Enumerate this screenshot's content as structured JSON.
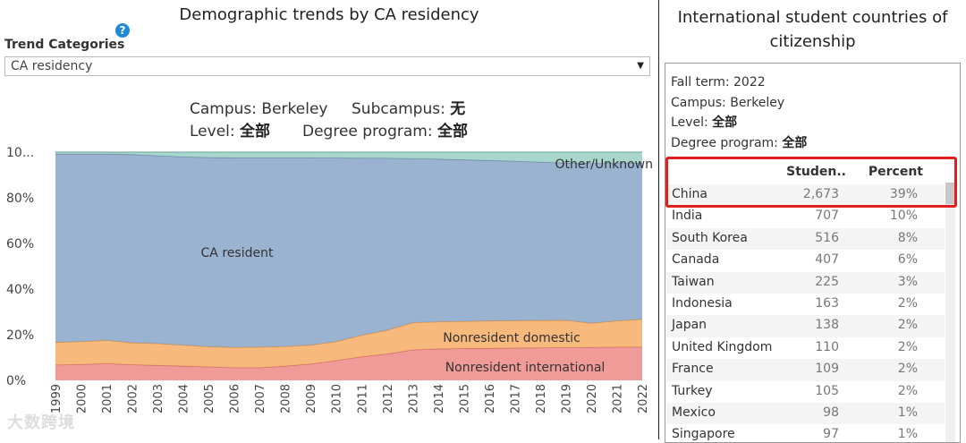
{
  "left": {
    "title": "Demographic trends by CA residency",
    "help_glyph": "?",
    "trend_label": "Trend Categories",
    "dropdown_value": "CA residency",
    "filters": {
      "campus_key": "Campus:",
      "campus_val": "Berkeley",
      "subcampus_key": "Subcampus:",
      "subcampus_val": "无",
      "level_key": "Level:",
      "level_val": "全部",
      "degree_key": "Degree program:",
      "degree_val": "全部"
    }
  },
  "watermark": "大数跨境",
  "chart_data": {
    "type": "area",
    "stacked": true,
    "title": "",
    "xlabel": "",
    "ylabel": "",
    "x": [
      "1999",
      "2000",
      "2001",
      "2002",
      "2003",
      "2004",
      "2005",
      "2006",
      "2007",
      "2008",
      "2009",
      "2010",
      "2011",
      "2012",
      "2013",
      "2014",
      "2015",
      "2016",
      "2017",
      "2018",
      "2019",
      "2020",
      "2021",
      "2022"
    ],
    "ylim": [
      0,
      100
    ],
    "yticks": [
      "0%",
      "20%",
      "40%",
      "60%",
      "80%",
      "10..."
    ],
    "grid": false,
    "series": [
      {
        "name": "Nonresident international",
        "color": "#f0908e",
        "values": [
          6.8,
          7.0,
          7.4,
          6.9,
          6.6,
          6.3,
          6.0,
          5.6,
          5.6,
          6.3,
          7.2,
          8.7,
          10.4,
          11.6,
          13.4,
          13.8,
          14.0,
          14.1,
          14.2,
          14.3,
          14.4,
          14.5,
          14.6,
          14.6
        ]
      },
      {
        "name": "Nonresident domestic",
        "color": "#f7b26e",
        "values": [
          9.9,
          10.0,
          10.2,
          9.6,
          9.6,
          9.2,
          8.8,
          8.9,
          9.0,
          8.6,
          8.3,
          8.3,
          9.4,
          10.4,
          11.9,
          11.9,
          11.9,
          12.0,
          12.0,
          12.0,
          12.0,
          10.6,
          11.5,
          12.2
        ]
      },
      {
        "name": "CA resident",
        "color": "#8fabcb",
        "values": [
          82.5,
          82.2,
          81.6,
          82.5,
          82.3,
          82.5,
          82.9,
          83.1,
          83.0,
          82.7,
          82.1,
          80.5,
          77.6,
          75.4,
          71.9,
          71.3,
          70.8,
          70.3,
          69.9,
          69.4,
          68.9,
          70.0,
          69.1,
          68.4
        ]
      },
      {
        "name": "Other/Unknown",
        "color": "#9fd3c8",
        "values": [
          0.8,
          0.8,
          0.8,
          1.0,
          1.5,
          2.0,
          2.3,
          2.4,
          2.4,
          2.4,
          2.4,
          2.5,
          2.6,
          2.6,
          2.8,
          3.0,
          3.3,
          3.6,
          3.9,
          4.3,
          4.7,
          4.9,
          4.8,
          4.8
        ]
      }
    ]
  },
  "right": {
    "title_line1": "International student countries of",
    "title_line2": "citizenship",
    "meta": {
      "fall_term_key": "Fall term:",
      "fall_term_val": "2022",
      "campus_key": "Campus:",
      "campus_val": "Berkeley",
      "level_key": "Level:",
      "level_val": "全部",
      "degree_key": "Degree program:",
      "degree_val": "全部"
    },
    "table": {
      "headers": {
        "country": "",
        "students": "Studen..",
        "percent": "Percent"
      },
      "rows": [
        {
          "country": "China",
          "students": "2,673",
          "percent": "39%"
        },
        {
          "country": "India",
          "students": "707",
          "percent": "10%"
        },
        {
          "country": "South Korea",
          "students": "516",
          "percent": "8%"
        },
        {
          "country": "Canada",
          "students": "407",
          "percent": "6%"
        },
        {
          "country": "Taiwan",
          "students": "225",
          "percent": "3%"
        },
        {
          "country": "Indonesia",
          "students": "163",
          "percent": "2%"
        },
        {
          "country": "Japan",
          "students": "138",
          "percent": "2%"
        },
        {
          "country": "United Kingdom",
          "students": "110",
          "percent": "2%"
        },
        {
          "country": "France",
          "students": "109",
          "percent": "2%"
        },
        {
          "country": "Turkey",
          "students": "105",
          "percent": "2%"
        },
        {
          "country": "Mexico",
          "students": "98",
          "percent": "1%"
        },
        {
          "country": "Singapore",
          "students": "97",
          "percent": "1%"
        }
      ]
    }
  }
}
